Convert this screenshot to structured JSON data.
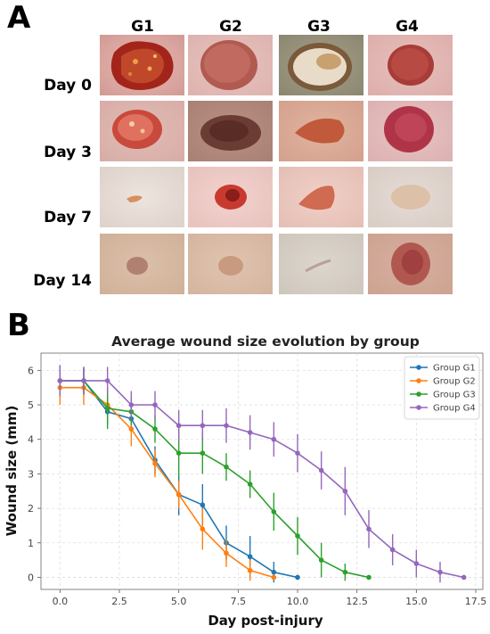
{
  "panel_a": {
    "letter": "A",
    "columns": [
      "G1",
      "G2",
      "G3",
      "G4"
    ],
    "rows": [
      "Day 0",
      "Day 3",
      "Day 7",
      "Day 14"
    ]
  },
  "panel_b": {
    "letter": "B"
  },
  "chart_data": {
    "type": "line",
    "title": "Average wound size evolution by group",
    "xlabel": "Day post-injury",
    "ylabel": "Wound size (mm)",
    "xlim": [
      -0.8,
      17.8
    ],
    "ylim": [
      -0.35,
      6.5
    ],
    "xticks": [
      "0.0",
      "2.5",
      "5.0",
      "7.5",
      "10.0",
      "12.5",
      "15.0",
      "17.5"
    ],
    "yticks": [
      "0",
      "1",
      "2",
      "3",
      "4",
      "5",
      "6"
    ],
    "grid": true,
    "legend_position": "top-right",
    "series": [
      {
        "name": "Group G1",
        "color": "#1f77b4",
        "x": [
          0,
          1,
          2,
          3,
          4,
          5,
          6,
          7,
          8,
          9,
          10
        ],
        "y": [
          5.7,
          5.7,
          4.8,
          4.6,
          3.4,
          2.4,
          2.1,
          1.0,
          0.6,
          0.15,
          0.0
        ],
        "err": [
          0.45,
          0.4,
          0.35,
          0.35,
          0.4,
          0.6,
          0.6,
          0.5,
          0.6,
          0.3,
          0
        ]
      },
      {
        "name": "Group G2",
        "color": "#ff7f0e",
        "x": [
          0,
          1,
          2,
          3,
          4,
          5,
          6,
          7,
          8,
          9
        ],
        "y": [
          5.5,
          5.5,
          5.0,
          4.3,
          3.3,
          2.4,
          1.4,
          0.7,
          0.2,
          0.0
        ],
        "err": [
          0.5,
          0.5,
          0.4,
          0.5,
          0.4,
          0.4,
          0.6,
          0.4,
          0.3,
          0
        ]
      },
      {
        "name": "Group G3",
        "color": "#2ca02c",
        "x": [
          0,
          1,
          2,
          3,
          4,
          5,
          6,
          7,
          8,
          9,
          10,
          11,
          12,
          13
        ],
        "y": [
          5.7,
          5.7,
          4.9,
          4.8,
          4.3,
          3.6,
          3.6,
          3.2,
          2.7,
          1.9,
          1.2,
          0.5,
          0.15,
          0.0
        ],
        "err": [
          0.4,
          0.4,
          0.6,
          0.4,
          0.4,
          0.7,
          0.6,
          0.4,
          0.4,
          0.55,
          0.55,
          0.5,
          0.25,
          0
        ]
      },
      {
        "name": "Group G4",
        "color": "#9467bd",
        "x": [
          0,
          1,
          2,
          3,
          4,
          5,
          6,
          7,
          8,
          9,
          10,
          11,
          12,
          13,
          14,
          15,
          16,
          17
        ],
        "y": [
          5.7,
          5.7,
          5.7,
          5.0,
          5.0,
          4.4,
          4.4,
          4.4,
          4.2,
          4.0,
          3.6,
          3.1,
          2.5,
          1.4,
          0.8,
          0.4,
          0.15,
          0.0
        ],
        "err": [
          0.45,
          0.4,
          0.4,
          0.4,
          0.4,
          0.45,
          0.45,
          0.5,
          0.5,
          0.5,
          0.55,
          0.55,
          0.7,
          0.55,
          0.45,
          0.4,
          0.3,
          0
        ]
      }
    ]
  }
}
